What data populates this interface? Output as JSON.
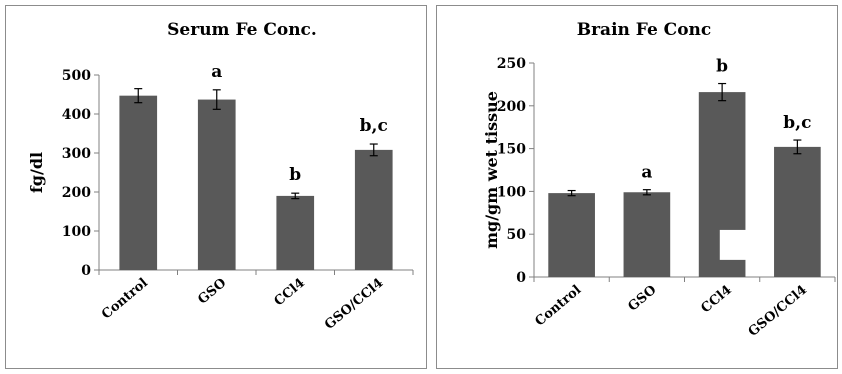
{
  "chart_data": [
    {
      "type": "bar",
      "title": "Serum Fe Conc.",
      "xlabel": "",
      "ylabel": "fg/dl",
      "categories": [
        "Control",
        "GSO",
        "CCl4",
        "GSO/CCl4"
      ],
      "values": [
        447,
        437,
        190,
        308
      ],
      "errors": [
        18,
        25,
        7,
        15
      ],
      "annotations": [
        "",
        "a",
        "b",
        "b,c"
      ],
      "ylim": [
        0,
        500
      ],
      "yticks": [
        0,
        100,
        200,
        300,
        400,
        500
      ],
      "bar_color": "#595959",
      "grid": false,
      "legend": "none"
    },
    {
      "type": "bar",
      "title": "Brain Fe Conc",
      "xlabel": "",
      "ylabel": "mg/gm wet  tissue",
      "categories": [
        "Control",
        "GSO",
        "CCl4",
        "GSO/CCl4"
      ],
      "values": [
        98,
        99,
        216,
        152
      ],
      "errors": [
        3,
        3,
        10,
        8
      ],
      "annotations": [
        "",
        "a",
        "b",
        "b,c"
      ],
      "ylim": [
        0,
        250
      ],
      "yticks": [
        0,
        50,
        100,
        150,
        200,
        250
      ],
      "bar_color": "#595959",
      "gap_range": [
        20,
        55
      ],
      "grid": false,
      "legend": "none"
    }
  ]
}
